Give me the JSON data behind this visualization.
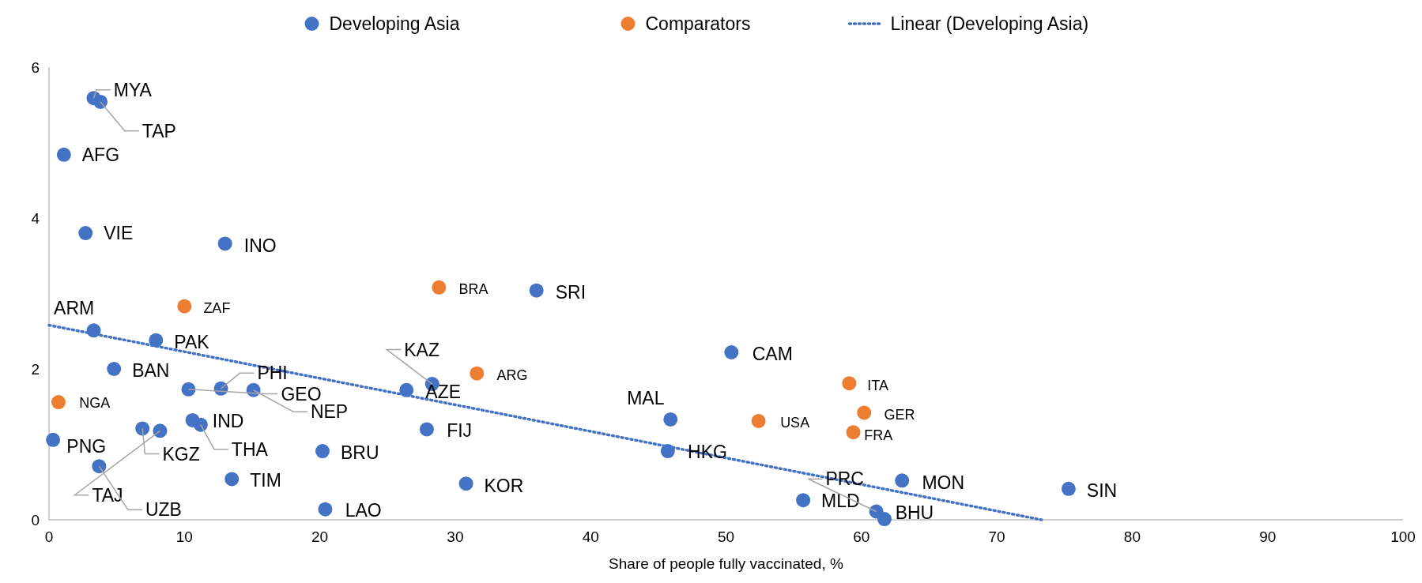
{
  "chart_data": {
    "type": "scatter",
    "xlabel": "Share of people fully vaccinated, %",
    "xlim": [
      0,
      100
    ],
    "xticks": [
      0,
      10,
      20,
      30,
      40,
      50,
      60,
      70,
      80,
      90,
      100
    ],
    "ylim": [
      0,
      6
    ],
    "yticks": [
      0,
      2,
      4,
      6
    ],
    "grid": false,
    "legend": "top",
    "marker": "circle",
    "series": [
      {
        "name": "Developing Asia",
        "type": "scatter",
        "color": "#4472c4",
        "x": [
          3.3,
          3.8,
          1.1,
          2.7,
          13.0,
          36.0,
          3.3,
          7.9,
          50.4,
          4.8,
          10.3,
          12.7,
          15.1,
          28.3,
          26.4,
          45.9,
          10.6,
          11.2,
          27.9,
          6.9,
          8.2,
          0.3,
          45.7,
          20.2,
          3.7,
          13.5,
          30.8,
          63.0,
          75.3,
          55.7,
          20.4,
          61.1,
          61.7
        ],
        "values": [
          5.59,
          5.54,
          4.84,
          3.8,
          3.66,
          3.04,
          2.51,
          2.38,
          2.22,
          2.0,
          1.73,
          1.74,
          1.72,
          1.8,
          1.72,
          1.33,
          1.32,
          1.26,
          1.2,
          1.21,
          1.18,
          1.06,
          0.91,
          0.91,
          0.71,
          0.54,
          0.48,
          0.52,
          0.41,
          0.26,
          0.14,
          0.11,
          0.01
        ]
      },
      {
        "name": "Comparators",
        "type": "scatter",
        "color": "#ed7d31",
        "x": [
          28.8,
          10.0,
          31.6,
          0.7,
          59.1,
          60.2,
          52.4,
          59.4
        ],
        "values": [
          3.08,
          2.83,
          1.94,
          1.56,
          1.81,
          1.42,
          1.31,
          1.16
        ]
      },
      {
        "name": "Linear (Developing Asia)",
        "type": "line",
        "color": "#4472c4",
        "line_style": "dotted",
        "marker": "none",
        "x": [
          0,
          73.3
        ],
        "values": [
          2.58,
          0
        ]
      }
    ],
    "annotations": [
      {
        "text": "MYA",
        "x": 3.3,
        "y": 5.59
      },
      {
        "text": "TAP",
        "x": 3.8,
        "y": 5.54
      },
      {
        "text": "AFG",
        "x": 1.1,
        "y": 4.84
      },
      {
        "text": "VIE",
        "x": 2.7,
        "y": 3.8
      },
      {
        "text": "INO",
        "x": 13.0,
        "y": 3.66
      },
      {
        "text": "SRI",
        "x": 36.0,
        "y": 3.04
      },
      {
        "text": "ARM",
        "x": 3.3,
        "y": 2.51
      },
      {
        "text": "PAK",
        "x": 7.9,
        "y": 2.38
      },
      {
        "text": "CAM",
        "x": 50.4,
        "y": 2.22
      },
      {
        "text": "BAN",
        "x": 4.8,
        "y": 2.0
      },
      {
        "text": "GEO",
        "x": 10.3,
        "y": 1.73
      },
      {
        "text": "PHI",
        "x": 12.7,
        "y": 1.74
      },
      {
        "text": "NEP",
        "x": 15.1,
        "y": 1.72
      },
      {
        "text": "KAZ",
        "x": 28.3,
        "y": 1.8
      },
      {
        "text": "AZE",
        "x": 26.4,
        "y": 1.72
      },
      {
        "text": "MAL",
        "x": 45.9,
        "y": 1.33
      },
      {
        "text": "IND",
        "x": 10.6,
        "y": 1.32
      },
      {
        "text": "THA",
        "x": 11.2,
        "y": 1.26
      },
      {
        "text": "FIJ",
        "x": 27.9,
        "y": 1.2
      },
      {
        "text": "KGZ",
        "x": 6.9,
        "y": 1.21
      },
      {
        "text": "TAJ",
        "x": 8.2,
        "y": 1.18
      },
      {
        "text": "PNG",
        "x": 0.3,
        "y": 1.06
      },
      {
        "text": "HKG",
        "x": 45.7,
        "y": 0.91
      },
      {
        "text": "BRU",
        "x": 20.2,
        "y": 0.91
      },
      {
        "text": "UZB",
        "x": 3.7,
        "y": 0.71
      },
      {
        "text": "TIM",
        "x": 13.5,
        "y": 0.54
      },
      {
        "text": "KOR",
        "x": 30.8,
        "y": 0.48
      },
      {
        "text": "MON",
        "x": 63.0,
        "y": 0.52
      },
      {
        "text": "SIN",
        "x": 75.3,
        "y": 0.41
      },
      {
        "text": "MLD",
        "x": 55.7,
        "y": 0.26
      },
      {
        "text": "LAO",
        "x": 20.4,
        "y": 0.14
      },
      {
        "text": "PRC",
        "x": 61.1,
        "y": 0.11
      },
      {
        "text": "BHU",
        "x": 61.7,
        "y": 0.01
      },
      {
        "text": "BRA",
        "x": 28.8,
        "y": 3.08
      },
      {
        "text": "ZAF",
        "x": 10.0,
        "y": 2.83
      },
      {
        "text": "ARG",
        "x": 31.6,
        "y": 1.94
      },
      {
        "text": "NGA",
        "x": 0.7,
        "y": 1.56
      },
      {
        "text": "ITA",
        "x": 59.1,
        "y": 1.81
      },
      {
        "text": "GER",
        "x": 60.2,
        "y": 1.42
      },
      {
        "text": "USA",
        "x": 52.4,
        "y": 1.31
      },
      {
        "text": "FRA",
        "x": 59.4,
        "y": 1.16
      }
    ]
  }
}
